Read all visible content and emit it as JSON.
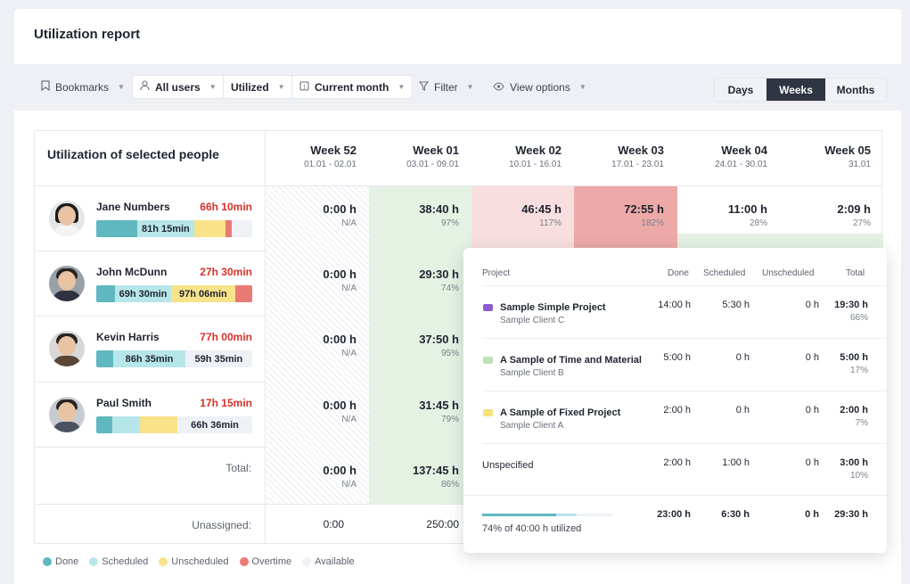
{
  "header": {
    "title": "Utilization report"
  },
  "toolbar": {
    "bookmarks": "Bookmarks",
    "users": "All users",
    "utilized": "Utilized",
    "period": "Current month",
    "filter": "Filter",
    "view_options": "View options",
    "views": [
      "Days",
      "Weeks",
      "Months"
    ],
    "active_view": "Weeks"
  },
  "table": {
    "heading": "Utilization of selected people",
    "weeks": [
      {
        "name": "Week 52",
        "dates": "01.01 - 02.01"
      },
      {
        "name": "Week 01",
        "dates": "03.01 - 09.01"
      },
      {
        "name": "Week 02",
        "dates": "10.01 - 16.01"
      },
      {
        "name": "Week 03",
        "dates": "17.01 - 23.01"
      },
      {
        "name": "Week 04",
        "dates": "24.01 - 30.01"
      },
      {
        "name": "Week 05",
        "dates": "31.01"
      }
    ],
    "people": [
      {
        "name": "Jane Numbers",
        "total": "66h 10min",
        "bar": [
          {
            "kind": "done",
            "share": 0.26,
            "label": ""
          },
          {
            "kind": "sched",
            "share": 0.37,
            "label": "81h 15min"
          },
          {
            "kind": "unsched",
            "share": 0.2,
            "label": ""
          },
          {
            "kind": "over",
            "share": 0.04,
            "label": ""
          },
          {
            "kind": "avail",
            "share": 0.13,
            "label": ""
          }
        ],
        "cells": [
          {
            "value": "0:00 h",
            "pct": "N/A"
          },
          {
            "value": "38:40 h",
            "pct": "97%"
          },
          {
            "value": "46:45 h",
            "pct": "117%"
          },
          {
            "value": "72:55 h",
            "pct": "182%"
          },
          {
            "value": "11:00 h",
            "pct": "28%"
          },
          {
            "value": "2:09 h",
            "pct": "27%"
          }
        ]
      },
      {
        "name": "John McDunn",
        "total": "27h 30min",
        "bar": [
          {
            "kind": "done",
            "share": 0.12,
            "label": ""
          },
          {
            "kind": "sched",
            "share": 0.36,
            "label": "69h 30min"
          },
          {
            "kind": "unsched",
            "share": 0.41,
            "label": "97h 06min"
          },
          {
            "kind": "over",
            "share": 0.11,
            "label": ""
          }
        ],
        "cells": [
          {
            "value": "0:00 h",
            "pct": "N/A"
          },
          {
            "value": "29:30 h",
            "pct": "74%"
          }
        ]
      },
      {
        "name": "Kevin Harris",
        "total": "77h 00min",
        "bar": [
          {
            "kind": "done",
            "share": 0.11,
            "label": ""
          },
          {
            "kind": "sched",
            "share": 0.46,
            "label": "86h 35min"
          },
          {
            "kind": "avail",
            "share": 0.43,
            "label": "59h 35min"
          }
        ],
        "cells": [
          {
            "value": "0:00 h",
            "pct": "N/A"
          },
          {
            "value": "37:50 h",
            "pct": "95%"
          }
        ]
      },
      {
        "name": "Paul Smith",
        "total": "17h 15min",
        "bar": [
          {
            "kind": "done",
            "share": 0.1,
            "label": ""
          },
          {
            "kind": "sched",
            "share": 0.18,
            "label": ""
          },
          {
            "kind": "unsched",
            "share": 0.24,
            "label": ""
          },
          {
            "kind": "avail",
            "share": 0.48,
            "label": "66h 36min"
          }
        ],
        "cells": [
          {
            "value": "0:00 h",
            "pct": "N/A"
          },
          {
            "value": "31:45 h",
            "pct": "79%"
          }
        ]
      }
    ],
    "total_label": "Total:",
    "total_cells": [
      {
        "value": "0:00 h",
        "pct": "N/A"
      },
      {
        "value": "137:45 h",
        "pct": "86%"
      }
    ],
    "unassigned_label": "Unassigned:",
    "unassigned_cells": [
      "0:00",
      "250:00"
    ]
  },
  "legend": [
    "Done",
    "Scheduled",
    "Unscheduled",
    "Overtime",
    "Available"
  ],
  "colors": {
    "done": "#5fb8bf",
    "scheduled": "#b7e6ea",
    "unscheduled": "#f8e38a",
    "overtime": "#ea7b74",
    "available": "#eef1f6",
    "alert_text": "#d6322b"
  },
  "popup": {
    "headers": {
      "project": "Project",
      "done": "Done",
      "scheduled": "Scheduled",
      "unscheduled": "Unscheduled",
      "total": "Total"
    },
    "rows": [
      {
        "project": "Sample Simple Project",
        "client": "Sample Client C",
        "color": "#8d5fd3",
        "done": "14:00 h",
        "scheduled": "5:30 h",
        "unscheduled": "0 h",
        "total": "19:30 h",
        "pct": "66%"
      },
      {
        "project": "A Sample of Time and Material",
        "client": "Sample Client B",
        "color": "#bfe3b3",
        "done": "5:00 h",
        "scheduled": "0 h",
        "unscheduled": "0 h",
        "total": "5:00 h",
        "pct": "17%"
      },
      {
        "project": "A Sample of Fixed Project",
        "client": "Sample Client A",
        "color": "#f6e27a",
        "done": "2:00 h",
        "scheduled": "0 h",
        "unscheduled": "0 h",
        "total": "2:00 h",
        "pct": "7%"
      },
      {
        "project": "Unspecified",
        "client": "",
        "color": "",
        "done": "2:00 h",
        "scheduled": "1:00 h",
        "unscheduled": "0 h",
        "total": "3:00 h",
        "pct": "10%"
      }
    ],
    "totals": {
      "done": "23:00 h",
      "scheduled": "6:30 h",
      "unscheduled": "0 h",
      "total": "29:30 h"
    },
    "utilized_text": "74% of 40:00 h utilized",
    "utilized_done": 0.57,
    "utilized_sched": 0.16
  }
}
